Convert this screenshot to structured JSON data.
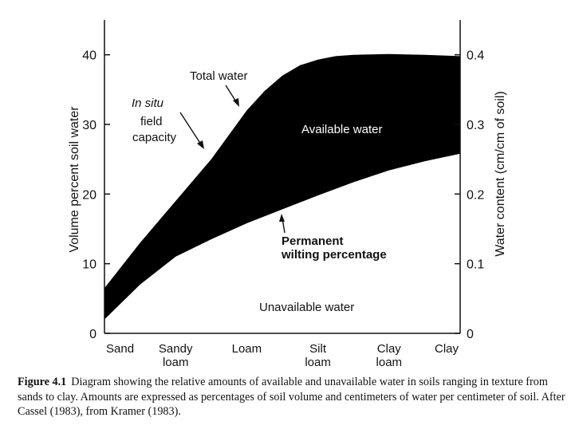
{
  "chart_data": {
    "type": "area",
    "categories": [
      "Sand",
      "Sandy\nloam",
      "Loam",
      "Silt\nloam",
      "Clay\nloam",
      "Clay"
    ],
    "x": [
      0,
      0.2,
      0.4,
      0.6,
      0.8,
      1.0
    ],
    "series": [
      {
        "name": "Total water",
        "x": [
          0,
          0.1,
          0.2,
          0.3,
          0.35,
          0.4,
          0.45,
          0.5,
          0.55,
          0.6,
          0.65,
          0.7,
          0.8,
          0.9,
          1.0
        ],
        "values": [
          6.5,
          13,
          19,
          25,
          28.5,
          32,
          34.8,
          37,
          38.5,
          39.3,
          39.8,
          40,
          40.1,
          40,
          39.8
        ]
      },
      {
        "name": "Permanent wilting percentage",
        "x": [
          0,
          0.1,
          0.2,
          0.3,
          0.4,
          0.5,
          0.6,
          0.7,
          0.8,
          0.9,
          1.0
        ],
        "values": [
          2,
          7,
          11,
          13.5,
          15.8,
          17.8,
          19.8,
          21.7,
          23.4,
          24.7,
          25.8
        ]
      }
    ],
    "ylim": [
      0,
      45
    ],
    "y_ticks": [
      0,
      10,
      20,
      30,
      40
    ],
    "y_tick_labels": [
      "0",
      "10",
      "20",
      "30",
      "40"
    ],
    "y2_ticks": [
      0,
      10,
      20,
      30,
      40
    ],
    "y2_tick_labels": [
      "0",
      "0.1",
      "0.2",
      "0.3",
      "0.4"
    ],
    "ylabel": "Volume percent soil water",
    "y2label": "Water content (cm/cm of soil)",
    "region_labels": {
      "available": "Available water",
      "unavailable": "Unavailable water"
    },
    "annotations": {
      "total_water": "Total water",
      "in_situ_1": "In situ",
      "in_situ_2": "field",
      "in_situ_3": "capacity",
      "pwp_1": "Permanent",
      "pwp_2": "wilting percentage"
    },
    "fill_color": "#000000"
  },
  "caption": {
    "label": "Figure 4.1",
    "text": "Diagram showing the relative amounts of available and unavailable water in soils ranging in texture from sands to clay. Amounts are expressed as percentages of soil volume and centimeters of water per centimeter of soil. After Cassel (1983), from Kramer (1983)."
  }
}
